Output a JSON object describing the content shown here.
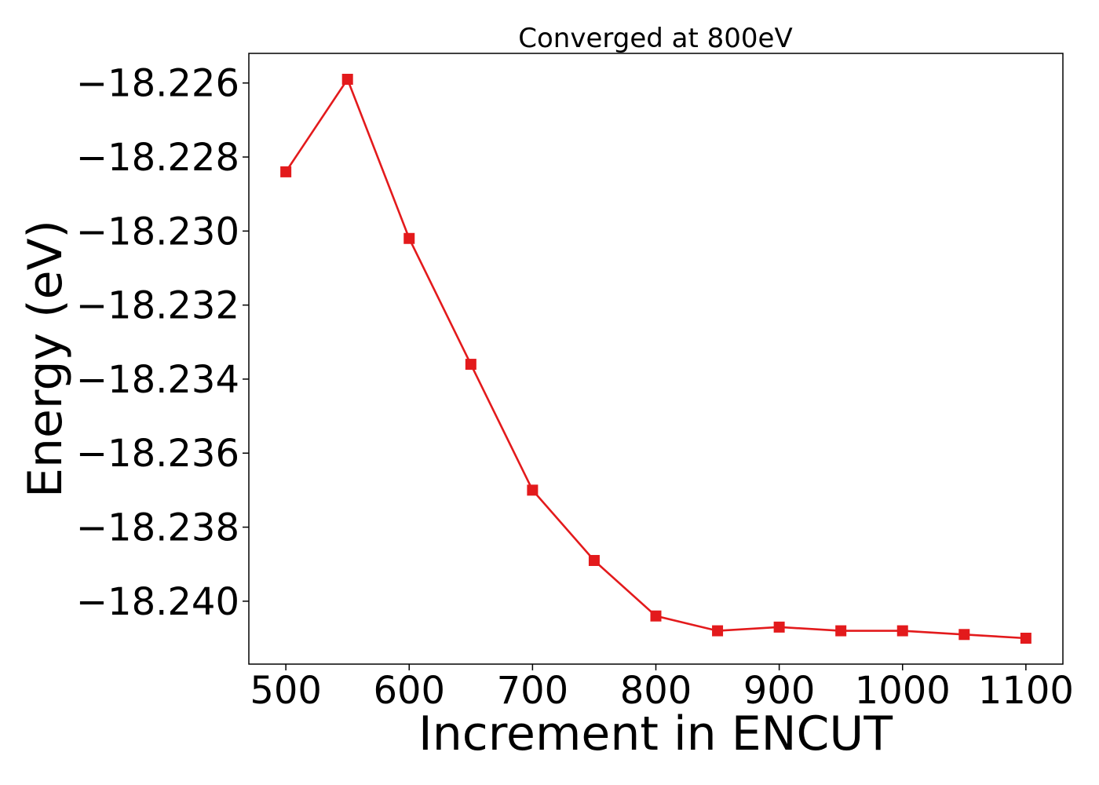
{
  "chart_data": {
    "type": "line",
    "title": "Converged at 800eV",
    "xlabel": "Increment in ENCUT",
    "ylabel": "Energy (eV)",
    "x": [
      500,
      550,
      600,
      650,
      700,
      750,
      800,
      850,
      900,
      950,
      1000,
      1050,
      1100
    ],
    "series": [
      {
        "values": [
          -18.2284,
          -18.2259,
          -18.2302,
          -18.2336,
          -18.237,
          -18.2389,
          -18.2404,
          -18.2408,
          -18.2407,
          -18.2408,
          -18.2408,
          -18.2409,
          -18.241
        ],
        "color": "#e31a1c",
        "marker": "square"
      }
    ],
    "xticks": [
      500,
      600,
      700,
      800,
      900,
      1000,
      1100
    ],
    "xtick_labels": [
      "500",
      "600",
      "700",
      "800",
      "900",
      "1000",
      "1100"
    ],
    "yticks": [
      -18.226,
      -18.228,
      -18.23,
      -18.232,
      -18.234,
      -18.236,
      -18.238,
      -18.24
    ],
    "ytick_labels": [
      "−18.226",
      "−18.228",
      "−18.230",
      "−18.232",
      "−18.234",
      "−18.236",
      "−18.238",
      "−18.240"
    ],
    "xlim": [
      470,
      1130
    ],
    "ylim": [
      -18.2417,
      -18.2252
    ],
    "grid": false,
    "legend": "none"
  }
}
